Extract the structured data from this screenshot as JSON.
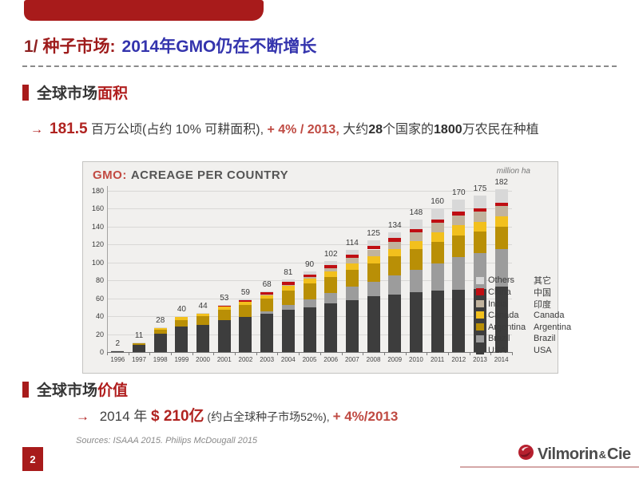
{
  "slide": {
    "title": {
      "prefix": "1/",
      "red_part": "种子市场:",
      "blue_part": "2014年GMO仍在不断增长"
    },
    "section1": {
      "black": "全球市场",
      "red": "面积"
    },
    "bullet1": {
      "segments": [
        {
          "text": "→",
          "cls": "arrow"
        },
        {
          "text": "181.5",
          "cls": "bigred"
        },
        {
          "text": " 百万公顷(占约 10% 可耕面积), ",
          "cls": "black"
        },
        {
          "text": "+ 4% / 2013,",
          "cls": "red"
        },
        {
          "text": " 大约",
          "cls": "black"
        },
        {
          "text": "28",
          "cls": "bold"
        },
        {
          "text": "个国家的",
          "cls": "black"
        },
        {
          "text": "1800",
          "cls": "bold"
        },
        {
          "text": "万农民在种植",
          "cls": "black"
        }
      ]
    },
    "section2": {
      "black": "全球市场",
      "red": "价值"
    },
    "bullet2": {
      "segments": [
        {
          "text": "→",
          "cls": "arrow"
        },
        {
          "text": "  2014 年 ",
          "cls": "black"
        },
        {
          "text": "$ 210亿",
          "cls": "bigred"
        },
        {
          "text": " (约占全球种子市场52%), ",
          "cls": "small"
        },
        {
          "text": "+ 4%/2013",
          "cls": "red"
        }
      ]
    },
    "sources": "Sources: ISAAA 2015. Philips McDougall 2015",
    "page_number": "2",
    "logo": {
      "name": "Vilmorin",
      "amp": "&",
      "suffix": "Cie"
    },
    "colors": {
      "accent_red": "#a81b1b",
      "title_blue": "#3434ad",
      "text": "#3f3f3f",
      "red_text": "#b02320"
    }
  },
  "chart_data": {
    "type": "bar",
    "stacked": true,
    "title": {
      "red": "GMO:",
      "rest": "ACREAGE PER COUNTRY"
    },
    "unit_label": "million ha",
    "categories": [
      "1996",
      "1997",
      "1998",
      "1999",
      "2000",
      "2001",
      "2002",
      "2003",
      "2004",
      "2005",
      "2006",
      "2007",
      "2008",
      "2009",
      "2010",
      "2011",
      "2012",
      "2013",
      "2014"
    ],
    "totals": [
      2,
      11,
      28,
      40,
      44,
      53,
      59,
      68,
      81,
      90,
      102,
      114,
      125,
      134,
      148,
      160,
      170,
      175,
      182
    ],
    "ylim": [
      0,
      180
    ],
    "ytick": 20,
    "grid": true,
    "legend_position": "right",
    "series": [
      {
        "name": "USA",
        "cn": "USA",
        "color": "#3d3d3d",
        "values": [
          1.5,
          8.1,
          20.5,
          28.7,
          30.3,
          35.7,
          39.0,
          42.8,
          47.6,
          49.8,
          54.6,
          57.7,
          62.5,
          64.0,
          66.8,
          69.0,
          69.5,
          70.1,
          73.1
        ]
      },
      {
        "name": "Brazil",
        "cn": "Brazil",
        "color": "#9c9c9c",
        "values": [
          0,
          0,
          0,
          0,
          0,
          0,
          0,
          3.0,
          5.0,
          9.4,
          11.5,
          15.0,
          15.8,
          21.4,
          25.4,
          30.3,
          36.6,
          40.3,
          42.2
        ]
      },
      {
        "name": "Argentina",
        "cn": "Argentina",
        "color": "#b98f06",
        "values": [
          0.1,
          1.4,
          4.3,
          6.7,
          10.0,
          11.8,
          13.5,
          13.9,
          16.2,
          17.1,
          18.0,
          19.1,
          21.0,
          21.3,
          22.9,
          23.7,
          23.9,
          24.4,
          24.3
        ]
      },
      {
        "name": "Canada",
        "cn": "Canada",
        "color": "#f2c01d",
        "values": [
          0.1,
          1.3,
          2.8,
          4.0,
          3.0,
          3.2,
          3.5,
          4.4,
          5.4,
          5.8,
          6.1,
          7.0,
          7.6,
          8.2,
          8.8,
          10.4,
          11.6,
          10.8,
          11.6
        ]
      },
      {
        "name": "India",
        "cn": "印度",
        "color": "#c1b39d",
        "values": [
          0,
          0,
          0,
          0,
          0,
          0,
          0,
          0.1,
          0.5,
          1.3,
          3.8,
          6.2,
          7.6,
          8.4,
          9.4,
          10.6,
          10.8,
          11.0,
          11.6
        ]
      },
      {
        "name": "China",
        "cn": "中国",
        "color": "#bf0e12",
        "values": [
          0,
          0.1,
          0.1,
          0.3,
          0.5,
          1.5,
          2.1,
          2.8,
          3.7,
          3.3,
          3.5,
          3.8,
          3.8,
          3.7,
          3.5,
          3.9,
          4.0,
          4.2,
          3.9
        ]
      },
      {
        "name": "Others",
        "cn": "其它",
        "color": "#d8d8d8",
        "values": [
          0.3,
          0.1,
          0.3,
          0.3,
          0.2,
          0.8,
          0.9,
          1.0,
          2.6,
          3.3,
          4.5,
          5.2,
          6.7,
          7.0,
          11.2,
          12.1,
          13.6,
          14.2,
          15.3
        ]
      }
    ]
  }
}
